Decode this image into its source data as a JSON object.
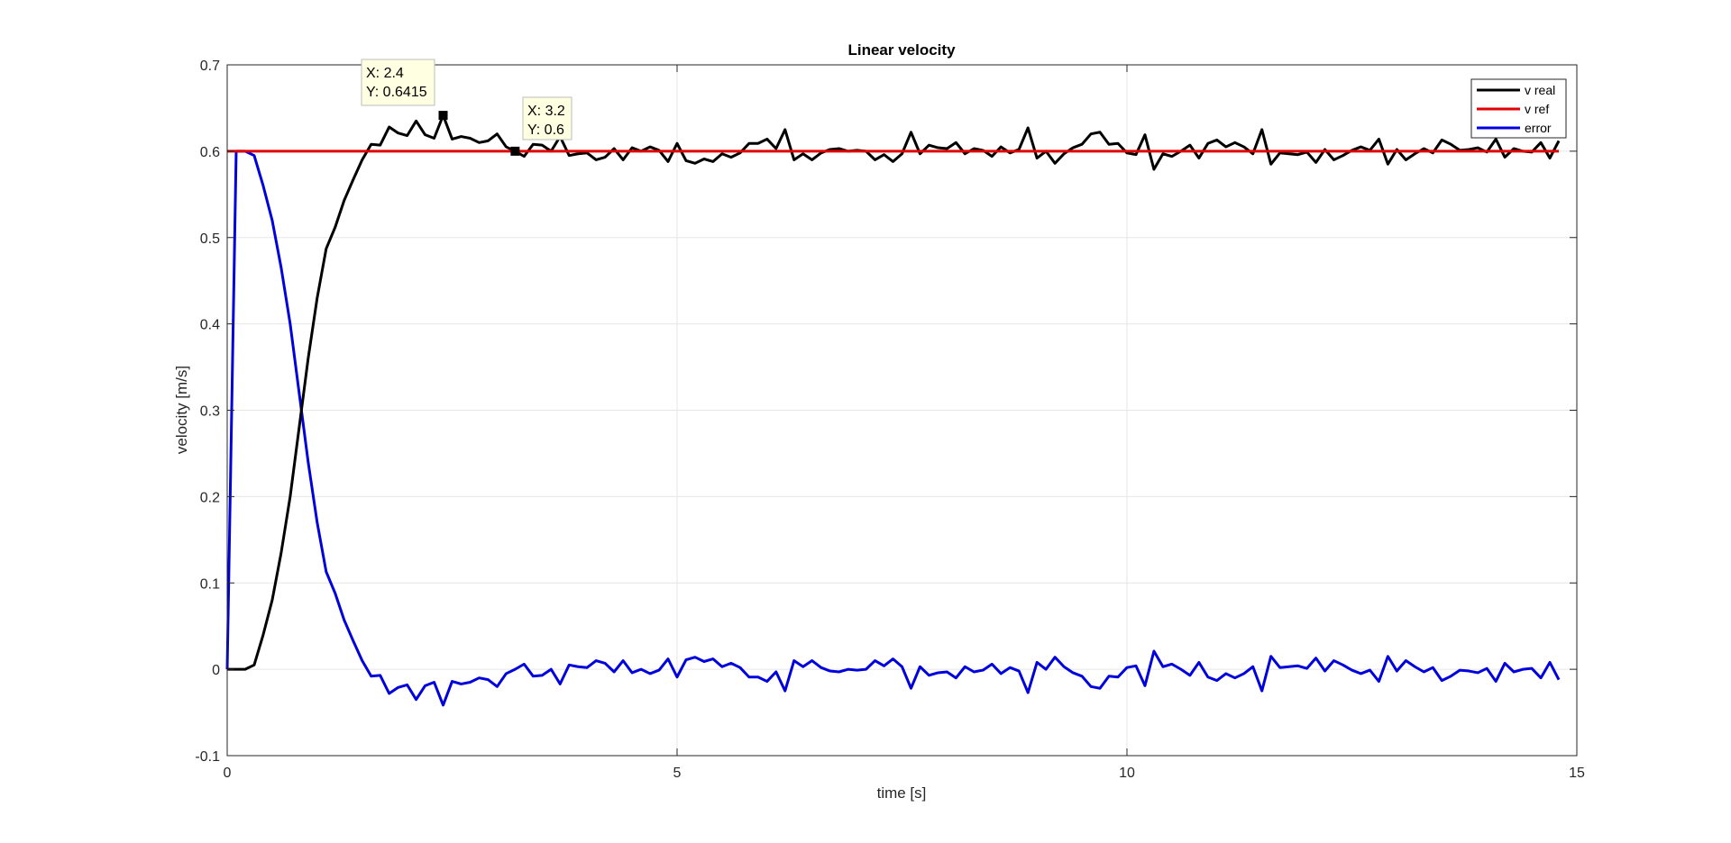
{
  "chart_data": {
    "type": "line",
    "title": "Linear velocity",
    "xlabel": "time [s]",
    "ylabel": "velocity [m/s]",
    "xlim": [
      0,
      15
    ],
    "ylim": [
      -0.1,
      0.7
    ],
    "xticks": [
      0,
      5,
      10,
      15
    ],
    "xtick_labels": [
      "0",
      "5",
      "10",
      "15"
    ],
    "yticks": [
      -0.1,
      0,
      0.1,
      0.2,
      0.3,
      0.4,
      0.5,
      0.6,
      0.7
    ],
    "ytick_labels": [
      "-0.1",
      "0",
      "0.1",
      "0.2",
      "0.3",
      "0.4",
      "0.5",
      "0.6",
      "0.7"
    ],
    "grid": true,
    "legend_position": "top-right",
    "x": [
      0,
      0.1,
      0.2,
      0.3,
      0.4,
      0.5,
      0.6,
      0.7,
      0.8,
      0.9,
      1.0,
      1.1,
      1.2,
      1.3,
      1.4,
      1.5,
      1.6,
      1.7,
      1.8,
      1.9,
      2.0,
      2.1,
      2.2,
      2.3,
      2.4,
      2.5,
      2.6,
      2.7,
      2.8,
      2.9,
      3.0,
      3.1,
      3.2,
      3.3,
      3.4,
      3.5,
      3.6,
      3.7,
      3.8,
      3.9,
      4.0,
      4.1,
      4.2,
      4.3,
      4.4,
      4.5,
      4.6,
      4.7,
      4.8,
      4.9,
      5.0,
      5.1,
      5.2,
      5.3,
      5.4,
      5.5,
      5.6,
      5.7,
      5.8,
      5.9,
      6.0,
      6.1,
      6.2,
      6.3,
      6.4,
      6.5,
      6.6,
      6.7,
      6.8,
      6.9,
      7.0,
      7.1,
      7.2,
      7.3,
      7.4,
      7.5,
      7.6,
      7.7,
      7.8,
      7.9,
      8.0,
      8.1,
      8.2,
      8.3,
      8.4,
      8.5,
      8.6,
      8.7,
      8.8,
      8.9,
      9.0,
      9.1,
      9.2,
      9.3,
      9.4,
      9.5,
      9.6,
      9.7,
      9.8,
      9.9,
      10.0,
      10.1,
      10.2,
      10.3,
      10.4,
      10.5,
      10.6,
      10.7,
      10.8,
      10.9,
      11.0,
      11.1,
      11.2,
      11.3,
      11.4,
      11.5,
      11.6,
      11.7,
      11.8,
      11.9,
      12.0,
      12.1,
      12.2,
      12.3,
      12.4,
      12.5,
      12.6,
      12.7,
      12.8,
      12.9,
      13.0,
      13.1,
      13.2,
      13.3,
      13.4,
      13.5,
      13.6,
      13.7,
      13.8,
      13.9,
      14.0,
      14.1,
      14.2,
      14.3,
      14.4,
      14.5,
      14.6,
      14.7,
      14.8
    ],
    "series": [
      {
        "name": "v real",
        "color": "#000000",
        "values": [
          0,
          0,
          0,
          0.005,
          0.04,
          0.08,
          0.135,
          0.2,
          0.28,
          0.36,
          0.43,
          0.487,
          0.512,
          0.543,
          0.567,
          0.59,
          0.608,
          0.607,
          0.628,
          0.621,
          0.618,
          0.635,
          0.619,
          0.615,
          0.6415,
          0.614,
          0.617,
          0.615,
          0.61,
          0.612,
          0.62,
          0.605,
          0.6,
          0.594,
          0.608,
          0.607,
          0.6,
          0.617,
          0.595,
          0.597,
          0.598,
          0.59,
          0.593,
          0.603,
          0.59,
          0.604,
          0.6,
          0.605,
          0.601,
          0.588,
          0.609,
          0.589,
          0.586,
          0.591,
          0.588,
          0.597,
          0.593,
          0.598,
          0.609,
          0.609,
          0.614,
          0.603,
          0.625,
          0.59,
          0.597,
          0.59,
          0.598,
          0.602,
          0.603,
          0.6,
          0.601,
          0.6,
          0.59,
          0.596,
          0.588,
          0.597,
          0.622,
          0.597,
          0.607,
          0.604,
          0.603,
          0.61,
          0.597,
          0.603,
          0.601,
          0.594,
          0.605,
          0.598,
          0.602,
          0.627,
          0.592,
          0.6,
          0.586,
          0.597,
          0.604,
          0.608,
          0.62,
          0.622,
          0.608,
          0.609,
          0.598,
          0.596,
          0.619,
          0.579,
          0.597,
          0.594,
          0.6,
          0.607,
          0.592,
          0.609,
          0.613,
          0.605,
          0.61,
          0.605,
          0.597,
          0.625,
          0.585,
          0.598,
          0.597,
          0.596,
          0.599,
          0.587,
          0.602,
          0.59,
          0.595,
          0.601,
          0.605,
          0.601,
          0.614,
          0.585,
          0.602,
          0.59,
          0.597,
          0.603,
          0.598,
          0.613,
          0.608,
          0.601,
          0.602,
          0.604,
          0.599,
          0.614,
          0.593,
          0.603,
          0.6,
          0.599,
          0.61,
          0.592,
          0.612
        ]
      },
      {
        "name": "v ref",
        "color": "#e00000",
        "values": [
          0.6,
          0.6,
          0.6,
          0.6,
          0.6,
          0.6,
          0.6,
          0.6,
          0.6,
          0.6,
          0.6,
          0.6,
          0.6,
          0.6,
          0.6,
          0.6,
          0.6,
          0.6,
          0.6,
          0.6,
          0.6,
          0.6,
          0.6,
          0.6,
          0.6,
          0.6,
          0.6,
          0.6,
          0.6,
          0.6,
          0.6,
          0.6,
          0.6,
          0.6,
          0.6,
          0.6,
          0.6,
          0.6,
          0.6,
          0.6,
          0.6,
          0.6,
          0.6,
          0.6,
          0.6,
          0.6,
          0.6,
          0.6,
          0.6,
          0.6,
          0.6,
          0.6,
          0.6,
          0.6,
          0.6,
          0.6,
          0.6,
          0.6,
          0.6,
          0.6,
          0.6,
          0.6,
          0.6,
          0.6,
          0.6,
          0.6,
          0.6,
          0.6,
          0.6,
          0.6,
          0.6,
          0.6,
          0.6,
          0.6,
          0.6,
          0.6,
          0.6,
          0.6,
          0.6,
          0.6,
          0.6,
          0.6,
          0.6,
          0.6,
          0.6,
          0.6,
          0.6,
          0.6,
          0.6,
          0.6,
          0.6,
          0.6,
          0.6,
          0.6,
          0.6,
          0.6,
          0.6,
          0.6,
          0.6,
          0.6,
          0.6,
          0.6,
          0.6,
          0.6,
          0.6,
          0.6,
          0.6,
          0.6,
          0.6,
          0.6,
          0.6,
          0.6,
          0.6,
          0.6,
          0.6,
          0.6,
          0.6,
          0.6,
          0.6,
          0.6,
          0.6,
          0.6,
          0.6,
          0.6,
          0.6,
          0.6,
          0.6,
          0.6,
          0.6,
          0.6,
          0.6,
          0.6,
          0.6,
          0.6,
          0.6,
          0.6,
          0.6,
          0.6,
          0.6,
          0.6,
          0.6,
          0.6,
          0.6,
          0.6,
          0.6,
          0.6,
          0.6,
          0.6,
          0.6
        ]
      },
      {
        "name": "error",
        "color": "#0000dd",
        "values": [
          0,
          0.6,
          0.6,
          0.595,
          0.56,
          0.52,
          0.465,
          0.4,
          0.32,
          0.24,
          0.17,
          0.113,
          0.088,
          0.057,
          0.033,
          0.01,
          -0.008,
          -0.007,
          -0.028,
          -0.021,
          -0.018,
          -0.035,
          -0.019,
          -0.015,
          -0.0415,
          -0.014,
          -0.017,
          -0.015,
          -0.01,
          -0.012,
          -0.02,
          -0.005,
          0,
          0.006,
          -0.008,
          -0.007,
          0,
          -0.017,
          0.005,
          0.003,
          0.002,
          0.01,
          0.007,
          -0.003,
          0.01,
          -0.004,
          0,
          -0.005,
          -0.001,
          0.012,
          -0.009,
          0.011,
          0.014,
          0.009,
          0.012,
          0.003,
          0.007,
          0.002,
          -0.009,
          -0.009,
          -0.014,
          -0.003,
          -0.025,
          0.01,
          0.003,
          0.01,
          0.002,
          -0.002,
          -0.003,
          0,
          -0.001,
          0,
          0.01,
          0.004,
          0.012,
          0.003,
          -0.022,
          0.003,
          -0.007,
          -0.004,
          -0.003,
          -0.01,
          0.003,
          -0.003,
          -0.001,
          0.006,
          -0.005,
          0.002,
          -0.002,
          -0.027,
          0.008,
          0,
          0.014,
          0.003,
          -0.004,
          -0.008,
          -0.02,
          -0.022,
          -0.008,
          -0.009,
          0.002,
          0.004,
          -0.019,
          0.021,
          0.003,
          0.006,
          0,
          -0.007,
          0.008,
          -0.009,
          -0.013,
          -0.005,
          -0.01,
          -0.005,
          0.003,
          -0.025,
          0.015,
          0.002,
          0.003,
          0.004,
          0.001,
          0.013,
          -0.002,
          0.01,
          0.005,
          -0.001,
          -0.005,
          -0.001,
          -0.014,
          0.015,
          -0.002,
          0.01,
          0.003,
          -0.003,
          0.002,
          -0.013,
          -0.008,
          -0.001,
          -0.002,
          -0.004,
          0.001,
          -0.014,
          0.007,
          -0.003,
          0,
          0.001,
          -0.01,
          0.008,
          -0.012
        ]
      }
    ],
    "datatips": [
      {
        "x": 2.4,
        "y": 0.6415,
        "line1": "X: 2.4",
        "line2": "Y: 0.6415"
      },
      {
        "x": 3.2,
        "y": 0.6,
        "line1": "X: 3.2",
        "line2": "Y: 0.6"
      }
    ]
  }
}
